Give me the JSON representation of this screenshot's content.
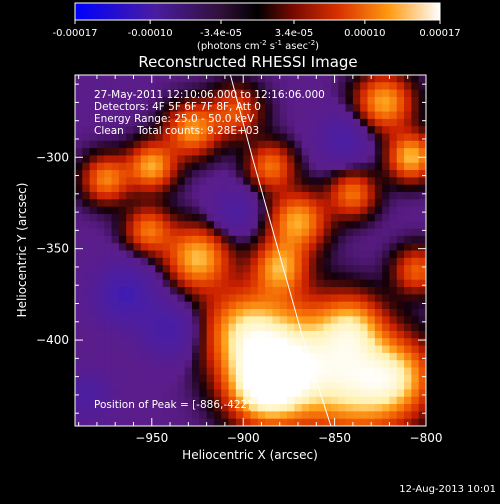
{
  "colorbar": {
    "ticks": [
      "-0.00017",
      "-0.00010",
      "-3.4e-05",
      "3.4e-05",
      "0.00010",
      "0.00017"
    ],
    "tick_values": [
      -0.00017,
      -0.0001,
      -3.4e-05,
      3.4e-05,
      0.0001,
      0.00017
    ],
    "range": [
      -0.00017,
      0.00017
    ],
    "units": "(photons cm",
    "units_sup1": "-2",
    "units_mid": " s",
    "units_sup2": "-1",
    "units_end": " asec",
    "units_sup3": "-2",
    "units_close": ")"
  },
  "plot": {
    "title": "Reconstructed RHESSI Image",
    "info_lines": [
      "27-May-2011 12:10:06.000 to 12:16:06.000",
      "Detectors: 4F 5F 6F 7F 8F, Att 0",
      "Energy Range: 25.0 - 50.0 keV",
      "Clean    Total counts: 9.28E+03"
    ],
    "peak_label": "Position of Peak = [-886,-422]",
    "background_color": "#5b1d8a",
    "limb_color": "#ffffff"
  },
  "chart_data": {
    "type": "heatmap",
    "title": "Reconstructed RHESSI Image",
    "xlabel": "Heliocentric X (arcsec)",
    "ylabel": "Heliocentric Y (arcsec)",
    "xlim": [
      -992,
      -800
    ],
    "ylim": [
      -447,
      -255
    ],
    "x_ticks": [
      -950,
      -900,
      -850,
      -800
    ],
    "y_ticks": [
      -300,
      -350,
      -400
    ],
    "peak": [
      -886,
      -422
    ],
    "colorscale": [
      "#0000ff",
      "#5a1d8c",
      "#000000",
      "#c81e00",
      "#ff8c00",
      "#ffffe0",
      "#ffffff"
    ],
    "sources": [
      {
        "x": -888,
        "y": -425,
        "s": 14,
        "a": 1.0
      },
      {
        "x": -870,
        "y": -410,
        "s": 22,
        "a": 0.85
      },
      {
        "x": -900,
        "y": -395,
        "s": 16,
        "a": 0.7
      },
      {
        "x": -835,
        "y": -425,
        "s": 20,
        "a": 0.75
      },
      {
        "x": -815,
        "y": -420,
        "s": 14,
        "a": 0.55
      },
      {
        "x": -840,
        "y": -392,
        "s": 12,
        "a": 0.55
      },
      {
        "x": -880,
        "y": -360,
        "s": 10,
        "a": 0.7
      },
      {
        "x": -870,
        "y": -335,
        "s": 11,
        "a": 0.75
      },
      {
        "x": -925,
        "y": -355,
        "s": 12,
        "a": 0.8
      },
      {
        "x": -952,
        "y": -340,
        "s": 9,
        "a": 0.6
      },
      {
        "x": -928,
        "y": -285,
        "s": 10,
        "a": 0.7
      },
      {
        "x": -950,
        "y": -305,
        "s": 9,
        "a": 0.75
      },
      {
        "x": -975,
        "y": -312,
        "s": 9,
        "a": 0.65
      },
      {
        "x": -904,
        "y": -275,
        "s": 10,
        "a": 0.5
      },
      {
        "x": -885,
        "y": -305,
        "s": 9,
        "a": 0.6
      },
      {
        "x": -823,
        "y": -270,
        "s": 11,
        "a": 0.75
      },
      {
        "x": -808,
        "y": -300,
        "s": 9,
        "a": 0.8
      },
      {
        "x": -840,
        "y": -320,
        "s": 9,
        "a": 0.6
      },
      {
        "x": -805,
        "y": -362,
        "s": 9,
        "a": 0.55
      },
      {
        "x": -965,
        "y": -375,
        "s": 12,
        "a": -0.55
      },
      {
        "x": -940,
        "y": -395,
        "s": 11,
        "a": -0.45
      },
      {
        "x": -985,
        "y": -430,
        "s": 9,
        "a": -0.35
      },
      {
        "x": -905,
        "y": -330,
        "s": 9,
        "a": -0.35
      },
      {
        "x": -845,
        "y": -290,
        "s": 10,
        "a": -0.4
      }
    ],
    "limb": [
      [
        -907,
        -255
      ],
      [
        -895,
        -300
      ],
      [
        -881,
        -350
      ],
      [
        -867,
        -400
      ],
      [
        -852,
        -447
      ]
    ]
  },
  "footer": {
    "date": "12-Aug-2013 10:01"
  }
}
